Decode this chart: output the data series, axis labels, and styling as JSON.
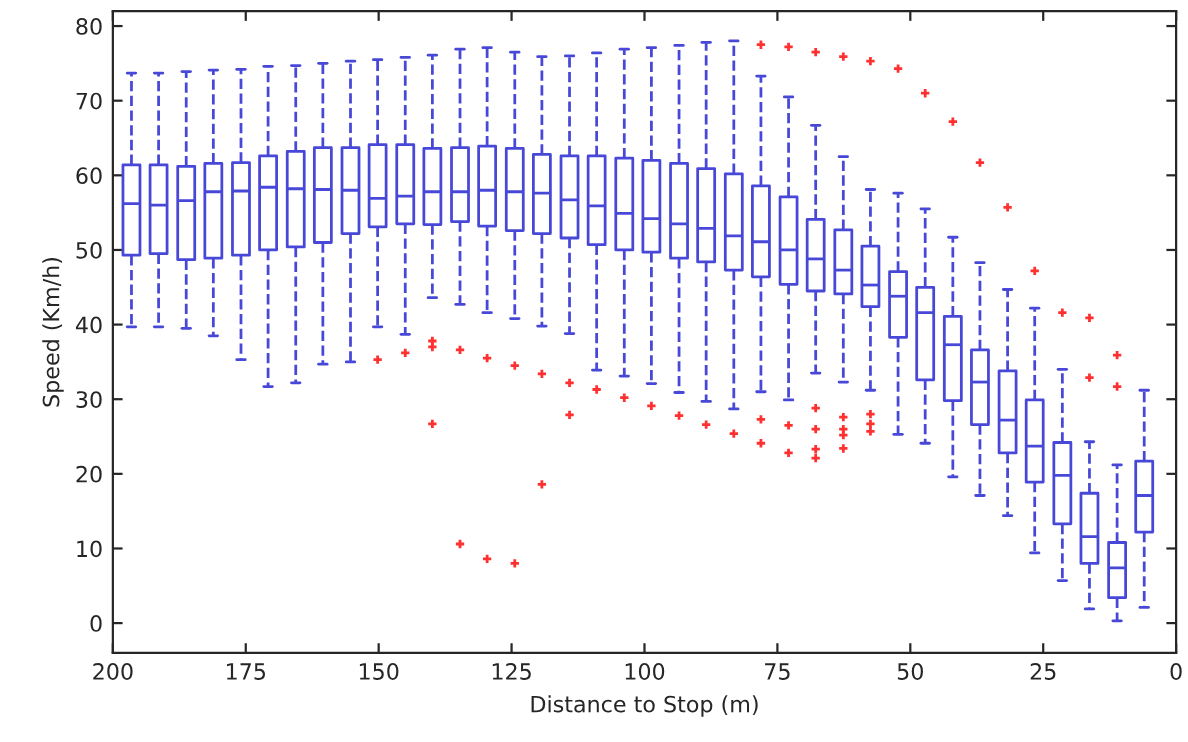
{
  "chart_data": {
    "type": "box",
    "xlabel": "Distance to Stop (m)",
    "ylabel": "Speed (Km/h)",
    "x": [
      196.5,
      191.4,
      186.2,
      181.1,
      175.9,
      170.8,
      165.6,
      160.5,
      155.3,
      150.2,
      145.0,
      139.9,
      134.7,
      129.6,
      124.4,
      119.3,
      114.1,
      109.0,
      103.8,
      98.7,
      93.5,
      88.4,
      83.2,
      78.1,
      72.9,
      67.8,
      62.6,
      57.5,
      52.3,
      47.2,
      42.0,
      36.9,
      31.7,
      26.6,
      21.4,
      16.3,
      11.1,
      6.0
    ],
    "series": [
      {
        "color": "#4848d8",
        "boxes": [
          {
            "low": 39.7,
            "q1": 49.3,
            "median": 56.2,
            "q3": 61.4,
            "high": 73.7
          },
          {
            "low": 39.7,
            "q1": 49.5,
            "median": 56.0,
            "q3": 61.4,
            "high": 73.7
          },
          {
            "low": 39.5,
            "q1": 48.7,
            "median": 56.6,
            "q3": 61.2,
            "high": 73.9
          },
          {
            "low": 38.5,
            "q1": 48.9,
            "median": 57.8,
            "q3": 61.6,
            "high": 74.1
          },
          {
            "low": 35.3,
            "q1": 49.3,
            "median": 57.9,
            "q3": 61.7,
            "high": 74.2
          },
          {
            "low": 31.7,
            "q1": 50.0,
            "median": 58.4,
            "q3": 62.6,
            "high": 74.6
          },
          {
            "low": 32.2,
            "q1": 50.4,
            "median": 58.2,
            "q3": 63.2,
            "high": 74.7
          },
          {
            "low": 34.7,
            "q1": 51.0,
            "median": 58.1,
            "q3": 63.7,
            "high": 75.0
          },
          {
            "low": 35.0,
            "q1": 52.2,
            "median": 58.0,
            "q3": 63.7,
            "high": 75.3
          },
          {
            "low": 39.7,
            "q1": 53.1,
            "median": 56.9,
            "q3": 64.1,
            "high": 75.5,
            "outliers": [
              35.3
            ]
          },
          {
            "low": 38.7,
            "q1": 53.5,
            "median": 57.2,
            "q3": 64.1,
            "high": 75.8,
            "outliers": [
              36.2
            ]
          },
          {
            "low": 43.6,
            "q1": 53.4,
            "median": 57.8,
            "q3": 63.6,
            "high": 76.1,
            "outliers": [
              37.8,
              37.0,
              26.7
            ]
          },
          {
            "low": 42.7,
            "q1": 53.8,
            "median": 57.8,
            "q3": 63.7,
            "high": 76.9,
            "outliers": [
              36.6,
              10.6
            ]
          },
          {
            "low": 41.6,
            "q1": 53.2,
            "median": 58.0,
            "q3": 63.9,
            "high": 77.1,
            "outliers": [
              35.5,
              8.6
            ]
          },
          {
            "low": 40.8,
            "q1": 52.6,
            "median": 57.8,
            "q3": 63.6,
            "high": 76.5,
            "outliers": [
              34.5,
              8.0
            ]
          },
          {
            "low": 39.8,
            "q1": 52.2,
            "median": 57.6,
            "q3": 62.8,
            "high": 75.9,
            "outliers": [
              33.4,
              18.6
            ]
          },
          {
            "low": 38.8,
            "q1": 51.6,
            "median": 56.7,
            "q3": 62.6,
            "high": 76.0,
            "outliers": [
              32.2,
              27.9
            ]
          },
          {
            "low": 33.9,
            "q1": 50.7,
            "median": 55.9,
            "q3": 62.6,
            "high": 76.4,
            "outliers": [
              31.3
            ]
          },
          {
            "low": 33.1,
            "q1": 50.0,
            "median": 54.9,
            "q3": 62.3,
            "high": 76.9,
            "outliers": [
              30.2
            ]
          },
          {
            "low": 32.1,
            "q1": 49.7,
            "median": 54.2,
            "q3": 62.0,
            "high": 77.1,
            "outliers": [
              29.1
            ]
          },
          {
            "low": 30.9,
            "q1": 48.9,
            "median": 53.5,
            "q3": 61.6,
            "high": 77.4,
            "outliers": [
              27.8
            ]
          },
          {
            "low": 29.7,
            "q1": 48.4,
            "median": 52.9,
            "q3": 60.9,
            "high": 77.8,
            "outliers": [
              26.6
            ]
          },
          {
            "low": 28.7,
            "q1": 47.3,
            "median": 51.9,
            "q3": 60.2,
            "high": 78.0,
            "outliers": [
              25.4
            ]
          },
          {
            "low": 31.0,
            "q1": 46.4,
            "median": 51.1,
            "q3": 58.6,
            "high": 73.3,
            "outliers": [
              77.5,
              27.3,
              24.1
            ]
          },
          {
            "low": 29.9,
            "q1": 45.4,
            "median": 50.0,
            "q3": 57.1,
            "high": 70.5,
            "outliers": [
              77.2,
              26.5,
              22.8
            ]
          },
          {
            "low": 33.5,
            "q1": 44.5,
            "median": 48.8,
            "q3": 54.1,
            "high": 66.7,
            "outliers": [
              76.5,
              28.8,
              26.0,
              23.3,
              22.1
            ]
          },
          {
            "low": 32.3,
            "q1": 44.1,
            "median": 47.3,
            "q3": 52.7,
            "high": 62.5,
            "outliers": [
              75.9,
              27.6,
              26.0,
              25.2,
              23.4
            ]
          },
          {
            "low": 31.2,
            "q1": 42.4,
            "median": 45.3,
            "q3": 50.5,
            "high": 58.1,
            "outliers": [
              75.3,
              28.0,
              26.7,
              25.7
            ]
          },
          {
            "low": 25.3,
            "q1": 38.3,
            "median": 43.8,
            "q3": 47.1,
            "high": 57.6,
            "outliers": [
              74.3
            ]
          },
          {
            "low": 24.1,
            "q1": 32.6,
            "median": 41.6,
            "q3": 45.0,
            "high": 55.5,
            "outliers": [
              71.0
            ]
          },
          {
            "low": 19.6,
            "q1": 29.8,
            "median": 37.3,
            "q3": 41.1,
            "high": 51.7,
            "outliers": [
              67.2
            ]
          },
          {
            "low": 17.1,
            "q1": 26.6,
            "median": 32.3,
            "q3": 36.6,
            "high": 48.3,
            "outliers": [
              61.7
            ]
          },
          {
            "low": 14.4,
            "q1": 22.8,
            "median": 27.2,
            "q3": 33.8,
            "high": 44.7,
            "outliers": [
              55.7
            ]
          },
          {
            "low": 9.4,
            "q1": 18.9,
            "median": 23.7,
            "q3": 29.9,
            "high": 42.2,
            "outliers": [
              47.2
            ]
          },
          {
            "low": 5.7,
            "q1": 13.3,
            "median": 19.8,
            "q3": 24.2,
            "high": 34.0,
            "outliers": [
              41.6
            ]
          },
          {
            "low": 1.9,
            "q1": 8.0,
            "median": 11.6,
            "q3": 17.4,
            "high": 24.3,
            "outliers": [
              40.9,
              32.9
            ]
          },
          {
            "low": 0.3,
            "q1": 3.4,
            "median": 7.4,
            "q3": 10.8,
            "high": 21.2,
            "outliers": [
              35.9,
              31.7
            ]
          },
          {
            "low": 2.1,
            "q1": 12.2,
            "median": 17.1,
            "q3": 21.7,
            "high": 31.2
          }
        ]
      }
    ],
    "xlim": [
      200,
      0
    ],
    "xticks": [
      200,
      175,
      150,
      125,
      100,
      75,
      50,
      25,
      0
    ],
    "ylim": [
      -4,
      82
    ],
    "yticks": [
      0,
      10,
      20,
      30,
      40,
      50,
      60,
      70,
      80
    ],
    "marker": "cross",
    "line_style": "dashed",
    "grid": false
  }
}
